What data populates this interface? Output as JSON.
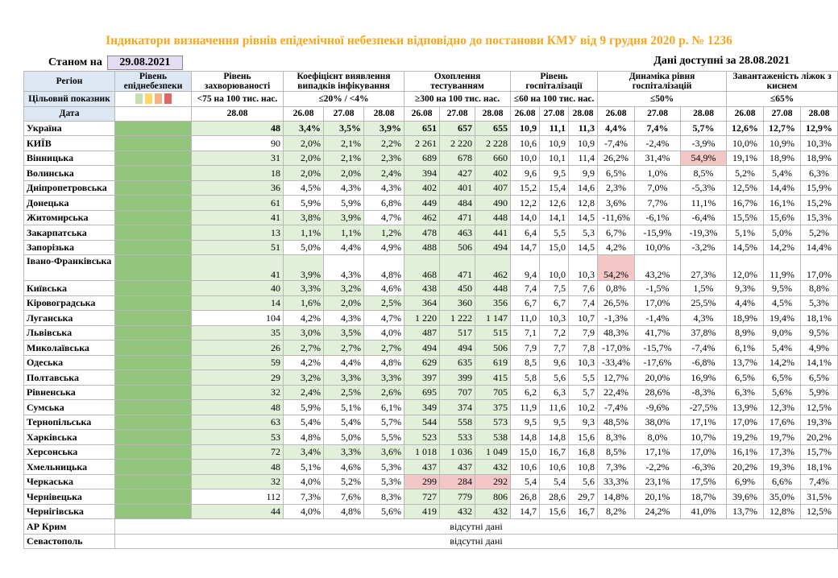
{
  "title": "Індикатори визначення рівнів епідемічної небезпеки відповідно до постанови КМУ від 9 грудня 2020 р. № 1236",
  "as_of_label": "Станом на",
  "as_of_date": "29.08.2021",
  "available_label": "Дані доступні за 28.08.2021",
  "headers": {
    "region": "Регіон",
    "target": "Цільовий показник",
    "date": "Дата",
    "level": "Рівень епіднебезпеки",
    "incidence": "Рівень захворюваності",
    "detection": "Коефіцієнт виявлення випадків інфікування",
    "testing": "Охоплення тестуванням",
    "hosp": "Рівень госпіталізації",
    "hosp_dyn": "Динаміка рівня госпіталізацій",
    "beds": "Завантаженість ліжок з киснем"
  },
  "targets": {
    "incidence": "<75 на 100 тис. нас.",
    "detection": "≤20% / <4%",
    "testing": "≥300 на 100 тис. нас.",
    "hosp": "≤60 на 100 тис. нас.",
    "hosp_dyn": "≤50%",
    "beds": "≤65%"
  },
  "target_colors": [
    "#c5e0b3",
    "#ffd966",
    "#f4b183",
    "#e06666"
  ],
  "dates": {
    "inc": "28.08",
    "d3": [
      "26.08",
      "27.08",
      "28.08"
    ]
  },
  "no_data": "відсутні дані",
  "rows": [
    {
      "name": "Україна",
      "inc": "48",
      "det": [
        "3,4%",
        "3,5%",
        "3,9%"
      ],
      "test": [
        "651",
        "657",
        "655"
      ],
      "hosp": [
        "10,9",
        "11,1",
        "11,3"
      ],
      "dyn": [
        "4,4%",
        "7,4%",
        "5,7%"
      ],
      "beds": [
        "12,6%",
        "12,7%",
        "12,9%"
      ],
      "bold": true
    },
    {
      "name": "КИЇВ",
      "inc": "90",
      "det": [
        "2,0%",
        "2,1%",
        "2,2%"
      ],
      "test": [
        "2 261",
        "2 220",
        "2 228"
      ],
      "hosp": [
        "10,6",
        "10,9",
        "10,9"
      ],
      "dyn": [
        "-7,4%",
        "-2,4%",
        "-3,9%"
      ],
      "beds": [
        "10,0%",
        "10,9%",
        "10,3%"
      ]
    },
    {
      "name": "Вінницька",
      "inc": "31",
      "det": [
        "2,0%",
        "2,1%",
        "2,3%"
      ],
      "test": [
        "689",
        "678",
        "660"
      ],
      "hosp": [
        "10,0",
        "10,1",
        "11,4"
      ],
      "dyn": [
        "26,2%",
        "31,4%",
        "54,9%"
      ],
      "beds": [
        "19,1%",
        "18,9%",
        "18,9%"
      ]
    },
    {
      "name": "Волинська",
      "inc": "18",
      "det": [
        "2,0%",
        "2,0%",
        "2,4%"
      ],
      "test": [
        "394",
        "427",
        "402"
      ],
      "hosp": [
        "9,6",
        "9,5",
        "9,9"
      ],
      "dyn": [
        "6,5%",
        "1,0%",
        "8,5%"
      ],
      "beds": [
        "5,2%",
        "5,4%",
        "6,3%"
      ]
    },
    {
      "name": "Дніпропетровська",
      "inc": "36",
      "det": [
        "4,5%",
        "4,3%",
        "4,3%"
      ],
      "test": [
        "402",
        "401",
        "407"
      ],
      "hosp": [
        "15,2",
        "15,4",
        "14,6"
      ],
      "dyn": [
        "2,3%",
        "7,0%",
        "-5,3%"
      ],
      "beds": [
        "12,5%",
        "14,4%",
        "15,9%"
      ]
    },
    {
      "name": "Донецька",
      "inc": "61",
      "det": [
        "5,9%",
        "5,9%",
        "6,8%"
      ],
      "test": [
        "449",
        "484",
        "490"
      ],
      "hosp": [
        "12,2",
        "12,6",
        "12,8"
      ],
      "dyn": [
        "3,6%",
        "7,7%",
        "11,1%"
      ],
      "beds": [
        "16,7%",
        "16,1%",
        "15,2%"
      ]
    },
    {
      "name": "Житомирська",
      "inc": "41",
      "det": [
        "3,8%",
        "3,9%",
        "4,7%"
      ],
      "test": [
        "462",
        "471",
        "448"
      ],
      "hosp": [
        "14,0",
        "14,1",
        "14,5"
      ],
      "dyn": [
        "-11,6%",
        "-6,1%",
        "-6,4%"
      ],
      "beds": [
        "15,5%",
        "15,6%",
        "15,3%"
      ]
    },
    {
      "name": "Закарпатська",
      "inc": "13",
      "det": [
        "1,1%",
        "1,1%",
        "1,2%"
      ],
      "test": [
        "478",
        "463",
        "441"
      ],
      "hosp": [
        "6,4",
        "5,5",
        "5,3"
      ],
      "dyn": [
        "6,7%",
        "-15,9%",
        "-19,3%"
      ],
      "beds": [
        "5,1%",
        "5,0%",
        "5,2%"
      ]
    },
    {
      "name": "Запорізька",
      "inc": "51",
      "det": [
        "5,0%",
        "4,4%",
        "4,9%"
      ],
      "test": [
        "488",
        "506",
        "494"
      ],
      "hosp": [
        "14,7",
        "15,0",
        "14,5"
      ],
      "dyn": [
        "4,2%",
        "10,0%",
        "-3,2%"
      ],
      "beds": [
        "14,5%",
        "14,2%",
        "14,4%"
      ]
    },
    {
      "name": "Івано-Франківська",
      "inc": "41",
      "det": [
        "3,9%",
        "4,3%",
        "4,8%"
      ],
      "test": [
        "468",
        "471",
        "462"
      ],
      "hosp": [
        "9,4",
        "10,0",
        "10,3"
      ],
      "dyn": [
        "54,2%",
        "43,2%",
        "27,3%"
      ],
      "beds": [
        "12,0%",
        "11,9%",
        "17,0%"
      ],
      "tall": true
    },
    {
      "name": "Київська",
      "inc": "40",
      "det": [
        "3,3%",
        "3,2%",
        "4,6%"
      ],
      "test": [
        "438",
        "450",
        "448"
      ],
      "hosp": [
        "7,4",
        "7,5",
        "7,6"
      ],
      "dyn": [
        "0,8%",
        "-1,5%",
        "1,5%"
      ],
      "beds": [
        "9,3%",
        "9,5%",
        "8,8%"
      ]
    },
    {
      "name": "Кіровоградська",
      "inc": "14",
      "det": [
        "1,6%",
        "2,0%",
        "2,5%"
      ],
      "test": [
        "364",
        "360",
        "356"
      ],
      "hosp": [
        "6,7",
        "6,7",
        "7,4"
      ],
      "dyn": [
        "26,5%",
        "17,0%",
        "25,5%"
      ],
      "beds": [
        "4,4%",
        "4,5%",
        "5,3%"
      ]
    },
    {
      "name": "Луганська",
      "inc": "104",
      "det": [
        "4,2%",
        "4,3%",
        "4,7%"
      ],
      "test": [
        "1 220",
        "1 222",
        "1 147"
      ],
      "hosp": [
        "11,0",
        "10,3",
        "10,7"
      ],
      "dyn": [
        "-1,3%",
        "-1,4%",
        "4,3%"
      ],
      "beds": [
        "18,9%",
        "19,4%",
        "18,1%"
      ]
    },
    {
      "name": "Львівська",
      "inc": "35",
      "det": [
        "3,0%",
        "3,5%",
        "4,0%"
      ],
      "test": [
        "487",
        "517",
        "515"
      ],
      "hosp": [
        "7,1",
        "7,2",
        "7,9"
      ],
      "dyn": [
        "48,3%",
        "41,7%",
        "37,8%"
      ],
      "beds": [
        "8,9%",
        "9,0%",
        "9,5%"
      ]
    },
    {
      "name": "Миколаївська",
      "inc": "26",
      "det": [
        "2,7%",
        "2,7%",
        "2,7%"
      ],
      "test": [
        "494",
        "494",
        "506"
      ],
      "hosp": [
        "7,9",
        "7,7",
        "7,8"
      ],
      "dyn": [
        "-17,0%",
        "-15,7%",
        "-7,4%"
      ],
      "beds": [
        "6,1%",
        "5,4%",
        "4,9%"
      ]
    },
    {
      "name": "Одеська",
      "inc": "59",
      "det": [
        "4,2%",
        "4,4%",
        "4,8%"
      ],
      "test": [
        "629",
        "635",
        "619"
      ],
      "hosp": [
        "8,5",
        "9,6",
        "10,3"
      ],
      "dyn": [
        "-33,4%",
        "-17,6%",
        "-6,8%"
      ],
      "beds": [
        "13,7%",
        "14,2%",
        "14,1%"
      ]
    },
    {
      "name": "Полтавська",
      "inc": "29",
      "det": [
        "3,2%",
        "3,3%",
        "3,3%"
      ],
      "test": [
        "397",
        "399",
        "415"
      ],
      "hosp": [
        "5,8",
        "5,6",
        "5,5"
      ],
      "dyn": [
        "12,7%",
        "20,0%",
        "16,9%"
      ],
      "beds": [
        "6,5%",
        "6,5%",
        "6,5%"
      ]
    },
    {
      "name": "Рівненська",
      "inc": "32",
      "det": [
        "2,4%",
        "2,5%",
        "2,6%"
      ],
      "test": [
        "695",
        "707",
        "705"
      ],
      "hosp": [
        "6,2",
        "6,3",
        "5,7"
      ],
      "dyn": [
        "22,4%",
        "28,6%",
        "-8,3%"
      ],
      "beds": [
        "6,3%",
        "5,6%",
        "5,9%"
      ]
    },
    {
      "name": "Сумська",
      "inc": "48",
      "det": [
        "5,9%",
        "5,1%",
        "6,1%"
      ],
      "test": [
        "349",
        "374",
        "375"
      ],
      "hosp": [
        "11,9",
        "11,6",
        "10,2"
      ],
      "dyn": [
        "-7,4%",
        "-9,6%",
        "-27,5%"
      ],
      "beds": [
        "13,9%",
        "12,3%",
        "12,5%"
      ]
    },
    {
      "name": "Тернопільська",
      "inc": "63",
      "det": [
        "5,4%",
        "5,4%",
        "5,7%"
      ],
      "test": [
        "544",
        "558",
        "573"
      ],
      "hosp": [
        "9,5",
        "9,5",
        "9,3"
      ],
      "dyn": [
        "48,5%",
        "38,0%",
        "17,1%"
      ],
      "beds": [
        "17,0%",
        "17,6%",
        "19,3%"
      ]
    },
    {
      "name": "Харківська",
      "inc": "53",
      "det": [
        "4,8%",
        "5,0%",
        "5,5%"
      ],
      "test": [
        "523",
        "533",
        "538"
      ],
      "hosp": [
        "14,8",
        "14,8",
        "15,6"
      ],
      "dyn": [
        "8,3%",
        "8,0%",
        "10,7%"
      ],
      "beds": [
        "19,2%",
        "19,7%",
        "20,2%"
      ]
    },
    {
      "name": "Херсонська",
      "inc": "72",
      "det": [
        "3,4%",
        "3,3%",
        "3,6%"
      ],
      "test": [
        "1 018",
        "1 036",
        "1 049"
      ],
      "hosp": [
        "15,0",
        "16,7",
        "16,8"
      ],
      "dyn": [
        "8,5%",
        "17,1%",
        "17,0%"
      ],
      "beds": [
        "16,1%",
        "17,3%",
        "15,7%"
      ]
    },
    {
      "name": "Хмельницька",
      "inc": "48",
      "det": [
        "5,1%",
        "4,6%",
        "5,3%"
      ],
      "test": [
        "437",
        "437",
        "432"
      ],
      "hosp": [
        "10,6",
        "10,6",
        "10,8"
      ],
      "dyn": [
        "7,3%",
        "-2,2%",
        "-6,3%"
      ],
      "beds": [
        "20,2%",
        "19,3%",
        "18,1%"
      ]
    },
    {
      "name": "Черкаська",
      "inc": "32",
      "det": [
        "4,0%",
        "5,2%",
        "5,3%"
      ],
      "test": [
        "299",
        "284",
        "292"
      ],
      "hosp": [
        "5,4",
        "5,4",
        "5,6"
      ],
      "dyn": [
        "33,3%",
        "23,1%",
        "17,5%"
      ],
      "beds": [
        "6,9%",
        "6,6%",
        "7,4%"
      ]
    },
    {
      "name": "Чернівецька",
      "inc": "112",
      "det": [
        "7,3%",
        "7,6%",
        "8,3%"
      ],
      "test": [
        "727",
        "779",
        "806"
      ],
      "hosp": [
        "26,8",
        "28,6",
        "29,7"
      ],
      "dyn": [
        "14,8%",
        "20,1%",
        "18,7%"
      ],
      "beds": [
        "39,6%",
        "35,0%",
        "31,5%"
      ]
    },
    {
      "name": "Чернігівська",
      "inc": "44",
      "det": [
        "4,0%",
        "4,8%",
        "5,6%"
      ],
      "test": [
        "419",
        "432",
        "432"
      ],
      "hosp": [
        "14,7",
        "15,6",
        "16,7"
      ],
      "dyn": [
        "8,2%",
        "24,2%",
        "41,0%"
      ],
      "beds": [
        "13,7%",
        "12,8%",
        "12,5%"
      ]
    }
  ],
  "missing_rows": [
    {
      "name": "АР Крим"
    },
    {
      "name": "Севастополь"
    }
  ]
}
